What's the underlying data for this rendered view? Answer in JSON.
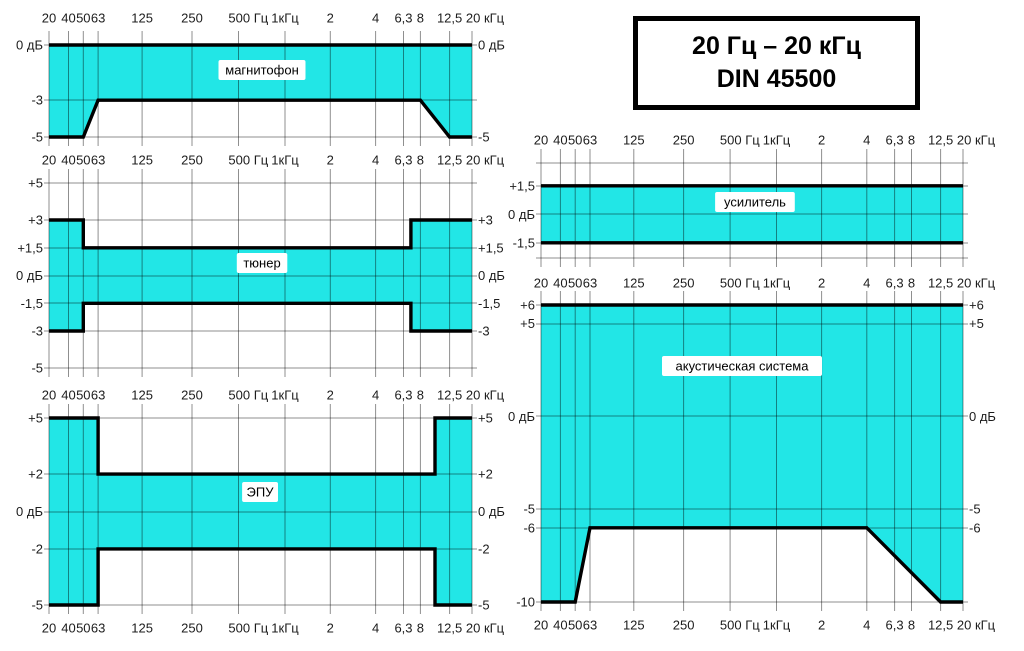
{
  "figure": {
    "background": "#ffffff"
  },
  "title_box": {
    "line1": "20 Гц – 20 кГц",
    "line2": "DIN 45500"
  },
  "colors": {
    "band_fill": "#22e6e6",
    "band_edge": "#000000",
    "grid": "#8f8f8f",
    "grid_overlay": "rgba(0,0,0,0.44)",
    "text": "#1c1c1c",
    "title_border": "#000000"
  },
  "chart_data": {
    "type": "area",
    "figure_title": "20 Гц – 20 кГц DIN 45500",
    "description_visible_labels_only": "DIN 45500 tolerance bands (dB vs frequency) for five hi-fi components",
    "x_axis": {
      "scale": "ruled frequency axis 20 Hz – 20 kHz (labels repeated above and below each chart)",
      "ticks": [
        {
          "f": 20,
          "label": "20",
          "pos": 0
        },
        {
          "f": 40,
          "label": "40",
          "pos": 4.6
        },
        {
          "f": 50,
          "label": "50",
          "pos": 8.1
        },
        {
          "f": 63,
          "label": "63",
          "pos": 11.6
        },
        {
          "f": 125,
          "label": "125",
          "pos": 22
        },
        {
          "f": 250,
          "label": "250",
          "pos": 33.8
        },
        {
          "f": 500,
          "label": "500 Гц",
          "pos": 44.8
        },
        {
          "f": 1000,
          "label": "1кГц",
          "pos": 55.8
        },
        {
          "f": 2000,
          "label": "2",
          "pos": 66.5
        },
        {
          "f": 4000,
          "label": "4",
          "pos": 77.2
        },
        {
          "f": 6300,
          "label": "6,3",
          "pos": 83.8
        },
        {
          "f": 8000,
          "label": "8",
          "pos": 87.8
        },
        {
          "f": 12500,
          "label": "12,5",
          "pos": 94.7
        },
        {
          "f": 20000,
          "label": "20 кГц",
          "pos": 100
        }
      ]
    },
    "charts": [
      {
        "id": "magnitofon",
        "label": "магнитофон",
        "type": "area",
        "y_box": [
          0,
          -5
        ],
        "y_levels": [
          {
            "db": 0,
            "label": "0 дБ",
            "left": true,
            "right": true
          },
          {
            "db": -3,
            "label": "-3",
            "left": true,
            "right": false
          },
          {
            "db": -5,
            "label": "-5",
            "left": true,
            "right": true
          }
        ],
        "upper_db": [
          [
            20,
            0
          ],
          [
            20000,
            0
          ]
        ],
        "lower_db": [
          [
            20,
            -5
          ],
          [
            50,
            -5
          ],
          [
            63,
            -3
          ],
          [
            8000,
            -3
          ],
          [
            12500,
            -5
          ],
          [
            20000,
            -5
          ]
        ]
      },
      {
        "id": "tuner",
        "label": "тюнер",
        "type": "area",
        "y_box": [
          5,
          -5
        ],
        "y_levels": [
          {
            "db": 5,
            "label": "+5",
            "left": true,
            "right": false
          },
          {
            "db": 3,
            "label": "+3",
            "left": true,
            "right": true
          },
          {
            "db": 1.5,
            "label": "+1,5",
            "left": true,
            "right": true
          },
          {
            "db": 0,
            "label": "0 дБ",
            "left": true,
            "right": true
          },
          {
            "db": -1.5,
            "label": "-1,5",
            "left": true,
            "right": true
          },
          {
            "db": -3,
            "label": "-3",
            "left": true,
            "right": true
          },
          {
            "db": -5,
            "label": "-5",
            "left": true,
            "right": false
          }
        ],
        "upper_db": [
          [
            20,
            3
          ],
          [
            50,
            3
          ],
          [
            50,
            1.5
          ],
          [
            7000,
            1.5
          ],
          [
            7000,
            3
          ],
          [
            20000,
            3
          ]
        ],
        "lower_db": [
          [
            20,
            -3
          ],
          [
            50,
            -3
          ],
          [
            50,
            -1.5
          ],
          [
            7000,
            -1.5
          ],
          [
            7000,
            -3
          ],
          [
            20000,
            -3
          ]
        ]
      },
      {
        "id": "epu",
        "label": "ЭПУ",
        "type": "area",
        "y_box": [
          5,
          -5
        ],
        "y_levels": [
          {
            "db": 5,
            "label": "+5",
            "left": true,
            "right": true
          },
          {
            "db": 2,
            "label": "+2",
            "left": true,
            "right": true
          },
          {
            "db": 0,
            "label": "0 дБ",
            "left": true,
            "right": true
          },
          {
            "db": -2,
            "label": "-2",
            "left": true,
            "right": true
          },
          {
            "db": -5,
            "label": "-5",
            "left": true,
            "right": true
          }
        ],
        "upper_db": [
          [
            20,
            5
          ],
          [
            63,
            5
          ],
          [
            63,
            2
          ],
          [
            10000,
            2
          ],
          [
            10000,
            5
          ],
          [
            20000,
            5
          ]
        ],
        "lower_db": [
          [
            20,
            -5
          ],
          [
            63,
            -5
          ],
          [
            63,
            -2
          ],
          [
            10000,
            -2
          ],
          [
            10000,
            -5
          ],
          [
            20000,
            -5
          ]
        ]
      },
      {
        "id": "usilitel",
        "label": "усилитель",
        "type": "area",
        "y_box": [
          2.7,
          -2.3
        ],
        "y_levels": [
          {
            "db": 1.5,
            "label": "+1,5",
            "left": true,
            "right": false
          },
          {
            "db": 0,
            "label": "0 дБ",
            "left": true,
            "right": false
          },
          {
            "db": -1.5,
            "label": "-1,5",
            "left": true,
            "right": false
          }
        ],
        "upper_db": [
          [
            20,
            1.5
          ],
          [
            20000,
            1.5
          ]
        ],
        "lower_db": [
          [
            20,
            -1.5
          ],
          [
            20000,
            -1.5
          ]
        ]
      },
      {
        "id": "akustika",
        "label": "акустическая система",
        "type": "area",
        "y_box": [
          6,
          -10
        ],
        "y_levels": [
          {
            "db": 6,
            "label": "+6",
            "left": true,
            "right": true
          },
          {
            "db": 5,
            "label": "+5",
            "left": true,
            "right": true
          },
          {
            "db": 0,
            "label": "0 дБ",
            "left": true,
            "right": true
          },
          {
            "db": -5,
            "label": "-5",
            "left": true,
            "right": true
          },
          {
            "db": -6,
            "label": "-6",
            "left": true,
            "right": true
          },
          {
            "db": -10,
            "label": "-10",
            "left": true,
            "right": false
          }
        ],
        "upper_db": [
          [
            20,
            6
          ],
          [
            20000,
            6
          ]
        ],
        "lower_db": [
          [
            20,
            -10
          ],
          [
            50,
            -10
          ],
          [
            63,
            -6
          ],
          [
            4000,
            -6
          ],
          [
            12500,
            -10
          ],
          [
            20000,
            -10
          ]
        ]
      }
    ]
  }
}
